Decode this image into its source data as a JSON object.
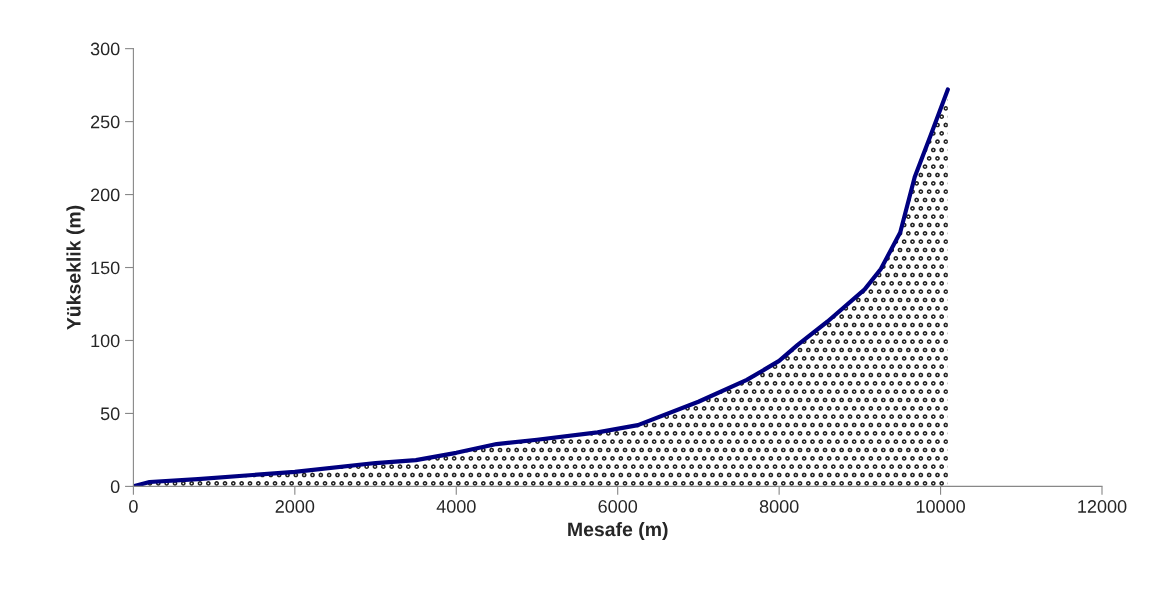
{
  "chart_data": {
    "type": "area",
    "xlabel": "Mesafe (m)",
    "ylabel": "Yükseklik (m)",
    "x": [
      0,
      200,
      800,
      2000,
      3000,
      3500,
      4000,
      4500,
      5000,
      5750,
      6250,
      7000,
      7600,
      8000,
      8230,
      8600,
      9060,
      9260,
      9500,
      9680,
      9880,
      10090
    ],
    "series": [
      {
        "color": "#000080",
        "values": [
          0,
          3,
          5,
          10,
          16,
          18,
          23,
          29,
          32,
          37,
          42,
          58,
          73,
          86,
          97,
          113,
          135,
          149,
          174,
          212,
          241,
          272
        ]
      }
    ],
    "xlim": [
      0,
      12000
    ],
    "xticks": [
      0,
      2000,
      4000,
      6000,
      8000,
      10000,
      12000
    ],
    "ylim": [
      0,
      300
    ],
    "yticks": [
      0,
      50,
      100,
      150,
      200,
      250,
      300
    ]
  }
}
